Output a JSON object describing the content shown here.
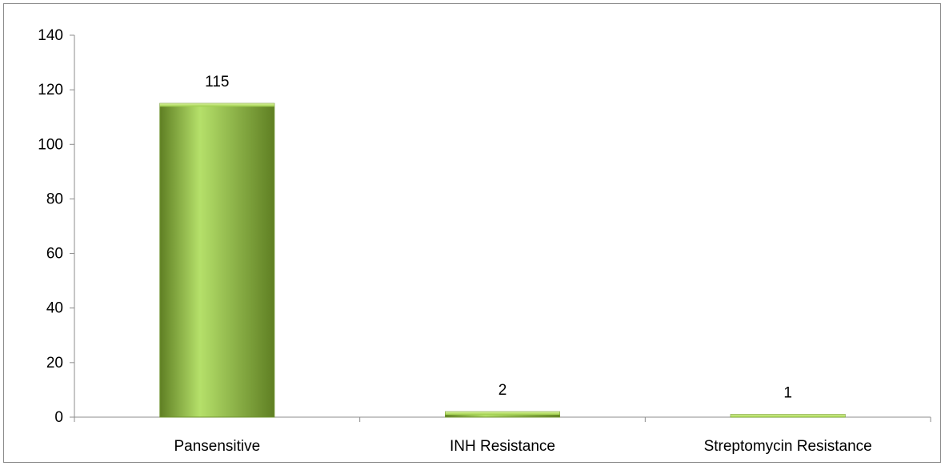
{
  "chart_data": {
    "type": "bar",
    "categories": [
      "Pansensitive",
      "INH Resistance",
      "Streptomycin Resistance"
    ],
    "values": [
      115,
      2,
      1
    ],
    "data_labels": [
      "115",
      "2",
      "1"
    ],
    "title": "",
    "xlabel": "",
    "ylabel": "",
    "ylim": [
      0,
      140
    ],
    "yticks": [
      0,
      20,
      40,
      60,
      80,
      100,
      120,
      140
    ],
    "grid": false,
    "legend": "none",
    "colors": {
      "bar_light": "#b5e06a",
      "bar_mid": "#8fbc3c",
      "bar_dark": "#5f7f23",
      "axis": "#8c8c8c",
      "frame": "#8c8c8c"
    }
  }
}
